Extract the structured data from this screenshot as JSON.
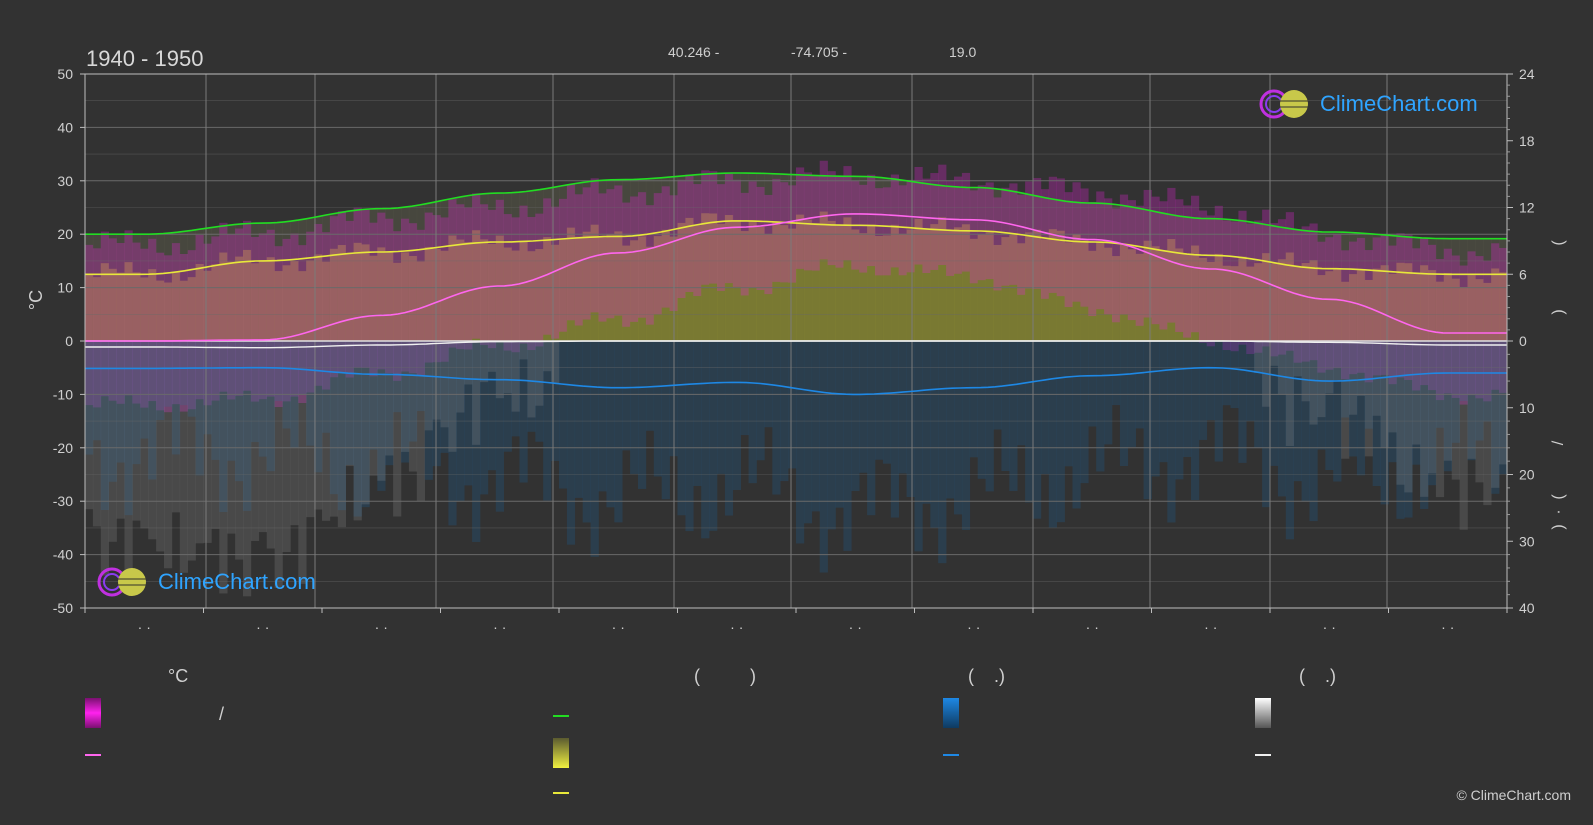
{
  "header": {
    "period": "1940 - 1950",
    "lat": "40.246 -",
    "lon": "-74.705 -",
    "elev": "19.0"
  },
  "brand": {
    "name": "ClimeChart.com"
  },
  "copyright": "© ClimeChart.com",
  "legend": {
    "col1_header": "°C",
    "col1_slash": "/",
    "col2_header": "(          )",
    "col3_header": "(    .)",
    "col4_header": "(    .)"
  },
  "colors": {
    "background": "#323232",
    "daylight": "#22dd22",
    "sunshine": "#e8e83a",
    "temperature": "#ff66ee",
    "temp_band": "#ee22dd",
    "rain": "#1e88e5",
    "snow": "#f0f0f0",
    "grid": "#6a6a6a"
  },
  "chart_data": {
    "type": "area",
    "x_months": 12,
    "left_axis": {
      "label": "°C",
      "ticks": [
        "50",
        "40",
        "30",
        "20",
        "10",
        "0",
        "-10",
        "-20",
        "-30",
        "-40",
        "-50"
      ],
      "ylim": [
        -50,
        50
      ]
    },
    "right_axis_top": {
      "ticks": [
        "24",
        "18",
        "12",
        "6",
        "0"
      ],
      "ylim": [
        0,
        24
      ],
      "label_glyphs": [
        "(",
        ")"
      ]
    },
    "right_axis_bottom": {
      "ticks": [
        "0",
        "10",
        "20",
        "30",
        "40"
      ],
      "ylim": [
        0,
        40
      ],
      "label_glyphs": [
        "/",
        "(",
        "·",
        ")"
      ]
    },
    "month_labels": [
      "· ·",
      "· ·",
      "· ·",
      "· ·",
      "· ·",
      "· ·",
      "· ·",
      "· ·",
      "· ·",
      "· ·",
      "· ·",
      "· ·"
    ],
    "grid": true,
    "series": [
      {
        "key": "daylight",
        "unit": "hours",
        "values": [
          9.6,
          10.6,
          11.9,
          13.3,
          14.5,
          15.1,
          14.8,
          13.8,
          12.4,
          11.0,
          9.8,
          9.2
        ]
      },
      {
        "key": "sunshine",
        "unit": "hours",
        "values": [
          6.0,
          7.2,
          8.0,
          8.9,
          9.4,
          10.8,
          10.4,
          9.9,
          8.9,
          7.7,
          6.5,
          6.0
        ]
      },
      {
        "key": "temperature_mean",
        "unit": "°C",
        "values": [
          0.0,
          0.2,
          4.8,
          10.3,
          16.5,
          21.3,
          23.8,
          22.7,
          19.0,
          13.5,
          7.8,
          1.5
        ]
      },
      {
        "key": "temperature_max",
        "unit": "°C",
        "values": [
          18,
          20,
          23,
          25,
          28,
          30,
          31,
          30,
          28,
          25,
          20,
          17
        ]
      },
      {
        "key": "temperature_min",
        "unit": "°C",
        "values": [
          -12,
          -11,
          -6,
          -1,
          4,
          10,
          14,
          12,
          6,
          0,
          -5,
          -10
        ]
      },
      {
        "key": "rain",
        "unit": "mm",
        "values": [
          4.1,
          4.0,
          5.0,
          5.8,
          7.0,
          6.2,
          8.0,
          7.0,
          5.2,
          4.0,
          6.0,
          4.8
        ]
      },
      {
        "key": "snow",
        "unit": "mm",
        "values": [
          0.9,
          1.0,
          0.6,
          0.1,
          0.0,
          0.0,
          0.0,
          0.0,
          0.0,
          0.0,
          0.2,
          0.6
        ]
      }
    ]
  }
}
